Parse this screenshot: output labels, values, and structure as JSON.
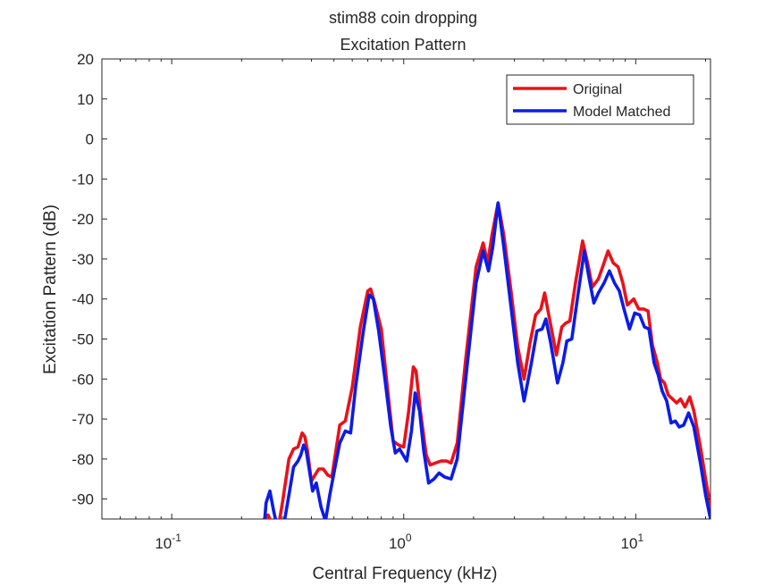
{
  "chart_data": {
    "type": "line",
    "title": "stim88 coin dropping",
    "subtitle": "Excitation Pattern",
    "xlabel": "Central Frequency (kHz)",
    "ylabel": "Excitation Pattern (dB)",
    "xscale": "log",
    "xlim": [
      0.05,
      21
    ],
    "ylim": [
      -95,
      20
    ],
    "grid": false,
    "legend_position": "top-right",
    "x_ticks": [
      {
        "value": 0.1,
        "base": "10",
        "exp": "-1"
      },
      {
        "value": 1,
        "base": "10",
        "exp": "0"
      },
      {
        "value": 10,
        "base": "10",
        "exp": "1"
      }
    ],
    "y_ticks": [
      20,
      10,
      0,
      -10,
      -20,
      -30,
      -40,
      -50,
      -60,
      -70,
      -80,
      -90
    ],
    "series": [
      {
        "name": "Original",
        "color": "#e8121b",
        "points": [
          [
            0.25,
            -95
          ],
          [
            0.26,
            -94
          ],
          [
            0.27,
            -96
          ],
          [
            0.28,
            -98
          ],
          [
            0.29,
            -96
          ],
          [
            0.3,
            -91
          ],
          [
            0.32,
            -80
          ],
          [
            0.335,
            -77.5
          ],
          [
            0.35,
            -77
          ],
          [
            0.365,
            -73.5
          ],
          [
            0.375,
            -74.5
          ],
          [
            0.385,
            -78
          ],
          [
            0.4,
            -85.5
          ],
          [
            0.415,
            -84
          ],
          [
            0.43,
            -82.5
          ],
          [
            0.45,
            -82.5
          ],
          [
            0.47,
            -84
          ],
          [
            0.49,
            -84.5
          ],
          [
            0.51,
            -78
          ],
          [
            0.53,
            -71.5
          ],
          [
            0.56,
            -70.5
          ],
          [
            0.6,
            -62
          ],
          [
            0.65,
            -47
          ],
          [
            0.7,
            -38
          ],
          [
            0.72,
            -37.5
          ],
          [
            0.75,
            -41
          ],
          [
            0.8,
            -47.5
          ],
          [
            0.85,
            -62
          ],
          [
            0.9,
            -75.5
          ],
          [
            0.95,
            -76.5
          ],
          [
            1.0,
            -77
          ],
          [
            1.05,
            -68
          ],
          [
            1.1,
            -57
          ],
          [
            1.13,
            -58
          ],
          [
            1.18,
            -68
          ],
          [
            1.25,
            -79
          ],
          [
            1.3,
            -81.5
          ],
          [
            1.37,
            -81
          ],
          [
            1.45,
            -80.5
          ],
          [
            1.53,
            -80.5
          ],
          [
            1.6,
            -81
          ],
          [
            1.7,
            -76
          ],
          [
            1.85,
            -55
          ],
          [
            2.05,
            -32
          ],
          [
            2.2,
            -26
          ],
          [
            2.3,
            -31
          ],
          [
            2.4,
            -24
          ],
          [
            2.55,
            -16
          ],
          [
            2.7,
            -24
          ],
          [
            2.9,
            -38
          ],
          [
            3.1,
            -52
          ],
          [
            3.3,
            -60
          ],
          [
            3.5,
            -51
          ],
          [
            3.7,
            -44
          ],
          [
            3.9,
            -42.5
          ],
          [
            4.05,
            -38.5
          ],
          [
            4.25,
            -45
          ],
          [
            4.55,
            -54
          ],
          [
            4.8,
            -47
          ],
          [
            5.0,
            -46
          ],
          [
            5.2,
            -45.5
          ],
          [
            5.5,
            -36
          ],
          [
            5.9,
            -25.5
          ],
          [
            6.2,
            -31
          ],
          [
            6.5,
            -37
          ],
          [
            6.9,
            -35
          ],
          [
            7.2,
            -32
          ],
          [
            7.6,
            -28
          ],
          [
            8.0,
            -31
          ],
          [
            8.4,
            -32
          ],
          [
            8.8,
            -36
          ],
          [
            9.2,
            -41.5
          ],
          [
            9.8,
            -40
          ],
          [
            10.3,
            -42.5
          ],
          [
            10.8,
            -42.5
          ],
          [
            11.3,
            -43
          ],
          [
            11.8,
            -51.5
          ],
          [
            12.4,
            -56
          ],
          [
            12.8,
            -60
          ],
          [
            13.3,
            -61
          ],
          [
            13.8,
            -64
          ],
          [
            14.4,
            -65
          ],
          [
            15.0,
            -66
          ],
          [
            15.6,
            -65
          ],
          [
            16.3,
            -67
          ],
          [
            17.1,
            -64.5
          ],
          [
            17.8,
            -68
          ],
          [
            19.0,
            -77
          ],
          [
            20.0,
            -85
          ],
          [
            21.0,
            -92
          ]
        ]
      },
      {
        "name": "Model Matched",
        "color": "#0c1ce5",
        "points": [
          [
            0.25,
            -97
          ],
          [
            0.255,
            -91
          ],
          [
            0.265,
            -88
          ],
          [
            0.275,
            -93
          ],
          [
            0.285,
            -97
          ],
          [
            0.295,
            -98
          ],
          [
            0.305,
            -96
          ],
          [
            0.32,
            -89
          ],
          [
            0.335,
            -82
          ],
          [
            0.35,
            -80.5
          ],
          [
            0.36,
            -79
          ],
          [
            0.37,
            -76.5
          ],
          [
            0.38,
            -78
          ],
          [
            0.395,
            -84
          ],
          [
            0.405,
            -88
          ],
          [
            0.42,
            -86
          ],
          [
            0.44,
            -92
          ],
          [
            0.46,
            -95.5
          ],
          [
            0.48,
            -89
          ],
          [
            0.51,
            -81
          ],
          [
            0.53,
            -76
          ],
          [
            0.56,
            -73
          ],
          [
            0.59,
            -73.5
          ],
          [
            0.62,
            -62
          ],
          [
            0.67,
            -48
          ],
          [
            0.71,
            -39
          ],
          [
            0.74,
            -40
          ],
          [
            0.78,
            -48
          ],
          [
            0.83,
            -60
          ],
          [
            0.88,
            -72
          ],
          [
            0.92,
            -78.5
          ],
          [
            0.96,
            -77.5
          ],
          [
            1.03,
            -80.5
          ],
          [
            1.08,
            -73
          ],
          [
            1.12,
            -63.5
          ],
          [
            1.17,
            -68
          ],
          [
            1.22,
            -78
          ],
          [
            1.28,
            -86
          ],
          [
            1.35,
            -85
          ],
          [
            1.42,
            -83.5
          ],
          [
            1.5,
            -84.5
          ],
          [
            1.6,
            -85
          ],
          [
            1.7,
            -80
          ],
          [
            1.85,
            -60
          ],
          [
            2.05,
            -36
          ],
          [
            2.2,
            -28
          ],
          [
            2.32,
            -33
          ],
          [
            2.42,
            -27
          ],
          [
            2.55,
            -16
          ],
          [
            2.7,
            -27
          ],
          [
            2.9,
            -42
          ],
          [
            3.1,
            -56
          ],
          [
            3.3,
            -65.5
          ],
          [
            3.55,
            -56
          ],
          [
            3.75,
            -48
          ],
          [
            3.95,
            -47.5
          ],
          [
            4.1,
            -45
          ],
          [
            4.3,
            -51
          ],
          [
            4.6,
            -61
          ],
          [
            4.85,
            -56
          ],
          [
            5.05,
            -50.5
          ],
          [
            5.3,
            -50
          ],
          [
            5.6,
            -40
          ],
          [
            6.0,
            -28
          ],
          [
            6.3,
            -35
          ],
          [
            6.6,
            -41
          ],
          [
            6.9,
            -38.5
          ],
          [
            7.3,
            -36
          ],
          [
            7.7,
            -33
          ],
          [
            8.1,
            -36
          ],
          [
            8.5,
            -38
          ],
          [
            8.9,
            -42.5
          ],
          [
            9.4,
            -47.5
          ],
          [
            9.9,
            -43.5
          ],
          [
            10.4,
            -44
          ],
          [
            10.9,
            -47
          ],
          [
            11.4,
            -47.5
          ],
          [
            12.0,
            -56
          ],
          [
            12.5,
            -59
          ],
          [
            13.0,
            -63
          ],
          [
            13.6,
            -65.5
          ],
          [
            14.2,
            -71
          ],
          [
            14.8,
            -70.5
          ],
          [
            15.4,
            -72
          ],
          [
            16.1,
            -71.5
          ],
          [
            16.9,
            -68.5
          ],
          [
            17.8,
            -72
          ],
          [
            19.0,
            -81
          ],
          [
            20.0,
            -89
          ],
          [
            21.0,
            -95
          ]
        ]
      }
    ]
  }
}
